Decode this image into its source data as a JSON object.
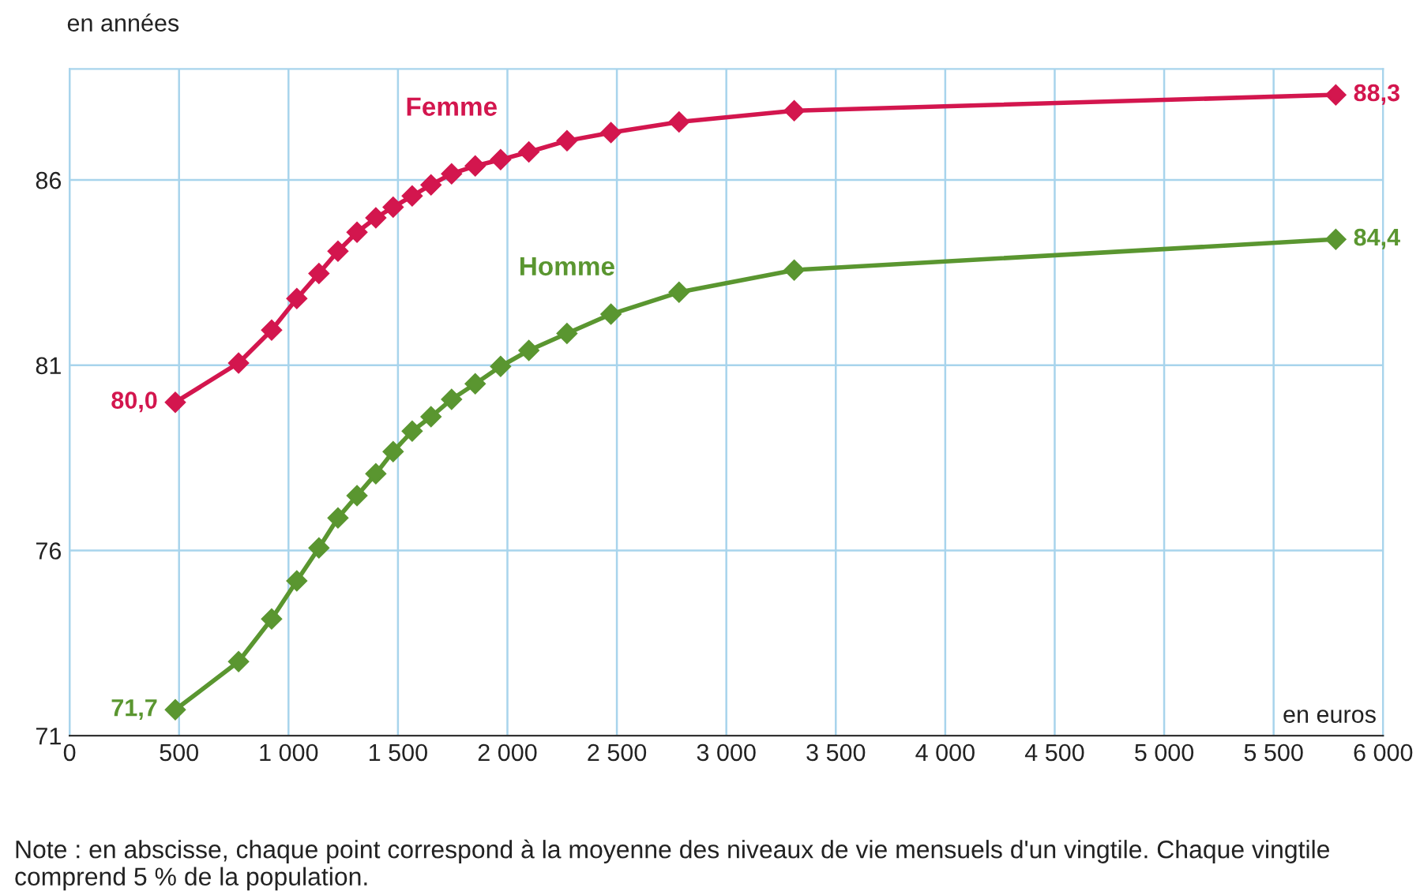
{
  "chart_data": {
    "type": "line",
    "ylabel": "en années",
    "xlabel": "en euros",
    "xlim": [
      0,
      6000
    ],
    "ylim": [
      71,
      89
    ],
    "xticks": [
      0,
      {
        "value": 500,
        "label": "500"
      },
      {
        "value": 1000,
        "label": "1 000"
      },
      {
        "value": 1500,
        "label": "1 500"
      },
      {
        "value": 2000,
        "label": "2 000"
      },
      {
        "value": 2500,
        "label": "2 500"
      },
      {
        "value": 3000,
        "label": "3 000"
      },
      {
        "value": 3500,
        "label": "3 500"
      },
      {
        "value": 4000,
        "label": "4 000"
      },
      {
        "value": 4500,
        "label": "4 500"
      },
      {
        "value": 5000,
        "label": "5 000"
      },
      {
        "value": 5500,
        "label": "5 500"
      },
      {
        "value": 6000,
        "label": "6 000"
      }
    ],
    "yticks": [
      71,
      76,
      81,
      86
    ],
    "grid": true,
    "legend": false,
    "marker": "diamond",
    "line_style": "solid",
    "series": [
      {
        "name": "Femme",
        "color": "#d3164e",
        "x": [
          483,
          772,
          923,
          1038,
          1139,
          1226,
          1313,
          1399,
          1478,
          1565,
          1651,
          1745,
          1853,
          1969,
          2098,
          2272,
          2473,
          2784,
          3310,
          5784
        ],
        "values": [
          80.0,
          81.06,
          81.95,
          82.8,
          83.48,
          84.08,
          84.59,
          84.98,
          85.27,
          85.57,
          85.87,
          86.17,
          86.38,
          86.55,
          86.76,
          87.06,
          87.28,
          87.57,
          87.87,
          88.3
        ],
        "value_labels": [
          "80,0",
          null,
          null,
          null,
          null,
          null,
          null,
          null,
          null,
          null,
          null,
          null,
          null,
          null,
          null,
          null,
          null,
          null,
          null,
          "88,3"
        ]
      },
      {
        "name": "Homme",
        "color": "#5a9630",
        "x": [
          483,
          772,
          923,
          1038,
          1139,
          1226,
          1313,
          1399,
          1478,
          1565,
          1651,
          1745,
          1853,
          1969,
          2098,
          2272,
          2473,
          2784,
          3310,
          5784
        ],
        "values": [
          71.7,
          73.0,
          74.15,
          75.18,
          76.07,
          76.88,
          77.48,
          78.07,
          78.67,
          79.22,
          79.61,
          80.08,
          80.5,
          80.97,
          81.4,
          81.86,
          82.38,
          82.97,
          83.57,
          84.4
        ],
        "value_labels": [
          "71,7",
          null,
          null,
          null,
          null,
          null,
          null,
          null,
          null,
          null,
          null,
          null,
          null,
          null,
          null,
          null,
          null,
          null,
          null,
          "84,4"
        ]
      }
    ],
    "annotations": [
      "Note : en abscisse, chaque point correspond à la moyenne des niveaux de vie mensuels d'un vingtile. Chaque vingtile comprend 5 % de la population."
    ]
  }
}
